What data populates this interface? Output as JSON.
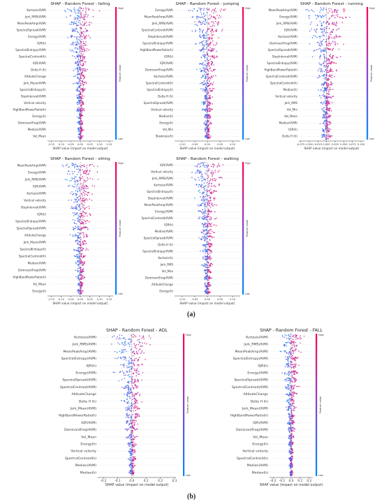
{
  "colors": {
    "high": "#ff0052",
    "low": "#008bfb"
  },
  "section_labels": {
    "a": "(a)",
    "b": "(b)"
  },
  "common": {
    "xlabel": "SHAP value (impact on model output)",
    "colorbar_title": "Feature value",
    "colorbar_high": "High",
    "colorbar_low": "Low"
  },
  "chart_data": [
    {
      "type": "scatter",
      "title": "SHAP - Random Forest - falling",
      "xlabel": "SHAP value (impact on model output)",
      "xlim": [
        -0.17,
        0.17
      ],
      "xticks": [
        -0.15,
        -0.1,
        -0.05,
        0.0,
        0.05,
        0.1,
        0.15
      ],
      "xtick_labels": [
        "-0.15",
        "-0.10",
        "-0.05",
        "0.00",
        "0.05",
        "0.10",
        "0.15"
      ],
      "features": [
        "Kurtosis(AVM)",
        "Jerk_RMS(AVM)",
        "MeanPeakAmp(AVM)",
        "SpectralSpread(AVM)",
        "Energy(AVM)",
        "IQR(h)",
        "SpectralEntropy(AVM)",
        "SpectralCentroid(h)",
        "IQR(AVM)",
        "Delta H (h)",
        "AltitudeChange",
        "Jerk_Mean(AVM)",
        "SpectralEntropy(h)",
        "StepInterval(AVM)",
        "Vertical velocity",
        "HighBandPowerRatio(h)",
        "Energy(h)",
        "DominantFreq(AVM)",
        "Median(AVM)",
        "Vel_Mean"
      ],
      "spread": [
        0.13,
        0.11,
        0.1,
        0.09,
        0.08,
        0.07,
        0.07,
        0.06,
        0.05,
        0.05,
        0.05,
        0.04,
        0.04,
        0.03,
        0.03,
        0.03,
        0.02,
        0.02,
        0.02,
        0.02
      ]
    },
    {
      "type": "scatter",
      "title": "SHAP - Random Forest - jumping",
      "xlabel": "SHAP value (impact on model output)",
      "xlim": [
        -0.13,
        0.13
      ],
      "xticks": [
        -0.1,
        -0.05,
        0.0,
        0.05,
        0.1
      ],
      "xtick_labels": [
        "-0.10",
        "-0.05",
        "0.00",
        "0.05",
        "0.10"
      ],
      "features": [
        "Energy(AVM)",
        "MeanPeakAmp(AVM)",
        "Jerk_RMS(AVM)",
        "SpectralCentroid(AVM)",
        "StepInterval(AVM)",
        "SpectralEntropy(AVM)",
        "HighBandPowerRatio(h)",
        "IQR(h)",
        "IQR(AVM)",
        "DominantFreq(AVM)",
        "Kurtosis(AVM)",
        "SpectralCentroid(h)",
        "SpectralEntropy(h)",
        "Delta H (h)",
        "SpectralSpread(AVM)",
        "Vertical velocity",
        "Median(h)",
        "Energy(h)",
        "Vel_Min",
        "Skewness(h)"
      ],
      "spread": [
        0.11,
        0.1,
        0.1,
        0.08,
        0.07,
        0.07,
        0.06,
        0.05,
        0.05,
        0.05,
        0.04,
        0.04,
        0.04,
        0.03,
        0.03,
        0.03,
        0.02,
        0.02,
        0.02,
        0.02
      ]
    },
    {
      "type": "scatter",
      "title": "SHAP - Random Forest - running",
      "xlabel": "SHAP value (impact on model output)",
      "xlim": [
        -0.08,
        0.11
      ],
      "xticks": [
        -0.075,
        -0.05,
        -0.025,
        0.0,
        0.025,
        0.05,
        0.075,
        0.1
      ],
      "xtick_labels": [
        "-0.075",
        "-0.050",
        "-0.025",
        "0.000",
        "0.025",
        "0.050",
        "0.075",
        "0.100"
      ],
      "features": [
        "MeanPeakAmp(AVM)",
        "Energy(AVM)",
        "Jerk_RMS(AVM)",
        "IQR(AVM)",
        "Kurtosis(AVM)",
        "DominantFreq(AVM)",
        "SpectralSpread(AVM)",
        "StepInterval(AVM)",
        "SpectralEntropy(AVM)",
        "HighBandPowerRatio(h)",
        "SpectralCentroid(AVM)",
        "SpectralCentroid(h)",
        "Median(h)",
        "Vertical velocity",
        "Jerk_RMS",
        "Vel_Min",
        "Vel_Mean",
        "Median(AVM)",
        "IQR(h)",
        "Delta H (h)"
      ],
      "spread": [
        0.1,
        0.09,
        0.08,
        0.07,
        0.06,
        0.06,
        0.05,
        0.05,
        0.04,
        0.04,
        0.04,
        0.03,
        0.03,
        0.03,
        0.02,
        0.02,
        0.02,
        0.02,
        0.02,
        0.02
      ]
    },
    {
      "type": "scatter",
      "title": "SHAP - Random Forest - sitting",
      "xlabel": "SHAP value (impact on model output)",
      "xlim": [
        -0.17,
        0.17
      ],
      "xticks": [
        -0.15,
        -0.1,
        -0.05,
        0.0,
        0.05,
        0.1,
        0.15
      ],
      "xtick_labels": [
        "-0.15",
        "-0.10",
        "-0.05",
        "0.00",
        "0.05",
        "0.10",
        "0.15"
      ],
      "features": [
        "MeanPeakAmp(AVM)",
        "Energy(AVM)",
        "Jerk_RMS(AVM)",
        "IQR(AVM)",
        "Kurtosis(AVM)",
        "Vertical velocity",
        "StepInterval(AVM)",
        "IQR(h)",
        "SpectralEntropy(AVM)",
        "SpectralSpread(AVM)",
        "AltitudeChange",
        "Jerk_Mean(AVM)",
        "SpectralEntropy(h)",
        "SpectralCentroid(h)",
        "Median(AVM)",
        "DominantFreq(AVM)",
        "HighBandPowerRatio(h)",
        "Vel_Mean",
        "Energy(h)"
      ],
      "spread": [
        0.13,
        0.12,
        0.11,
        0.1,
        0.09,
        0.08,
        0.08,
        0.07,
        0.07,
        0.06,
        0.06,
        0.05,
        0.05,
        0.04,
        0.04,
        0.03,
        0.03,
        0.02,
        0.02
      ]
    },
    {
      "type": "scatter",
      "title": "SHAP - Random Forest - walking",
      "xlabel": "SHAP value (impact on model output)",
      "xlim": [
        -0.13,
        0.13
      ],
      "xticks": [
        -0.1,
        -0.05,
        0.0,
        0.05,
        0.1
      ],
      "xtick_labels": [
        "-0.10",
        "-0.05",
        "0.00",
        "0.05",
        "0.10"
      ],
      "features": [
        "IQR(AVM)",
        "Vertical velocity",
        "Jerk_RMS(AVM)",
        "Kurtosis(AVM)",
        "SpectralEntropy(h)",
        "StepInterval(AVM)",
        "MeanPeakAmp(AVM)",
        "Energy(AVM)",
        "SpectralCentroid(AVM)",
        "IQR(h)",
        "Median(AVM)",
        "SpectralSpread(AVM)",
        "Delta H (h)",
        "SpectralEntropy(AVM)",
        "Kurtosis(h)",
        "Jerk_RMS",
        "Vel_Max",
        "DominantFreq(AVM)",
        "AltitudeChange",
        "Energy(h)"
      ],
      "spread": [
        0.1,
        0.1,
        0.09,
        0.07,
        0.06,
        0.06,
        0.05,
        0.05,
        0.05,
        0.04,
        0.04,
        0.04,
        0.03,
        0.03,
        0.03,
        0.03,
        0.02,
        0.02,
        0.02,
        0.02
      ]
    },
    {
      "type": "scatter",
      "title": "SHAP - Random Forest - ADL",
      "xlabel": "SHAP value (impact on model output)",
      "xlim": [
        -0.24,
        0.31
      ],
      "xticks": [
        -0.2,
        -0.1,
        0.0,
        0.1,
        0.2,
        0.3
      ],
      "xtick_labels": [
        "-0.2",
        "-0.1",
        "0.0",
        "0.1",
        "0.2",
        "0.3"
      ],
      "features": [
        "Kurtosis(AVM)",
        "Jerk_RMS(AVM)",
        "MeanPeakAmp(AVM)",
        "SpectralEntropy(AVM)",
        "IQR(h)",
        "Energy(AVM)",
        "SpectralSpread(AVM)",
        "SpectralCentroid(AVM)",
        "AltitudeChange",
        "Delta H (h)",
        "Jerk_Mean(AVM)",
        "HighBandPowerRatio(h)",
        "IQR(AVM)",
        "DominantFreq(AVM)",
        "Vel_Mean",
        "Energy(h)",
        "Vertical velocity",
        "SpectralCentroid(h)",
        "Median(AVM)",
        "Median(h)"
      ],
      "spread": [
        0.22,
        0.18,
        0.16,
        0.14,
        0.12,
        0.15,
        0.11,
        0.1,
        0.09,
        0.09,
        0.08,
        0.08,
        0.07,
        0.06,
        0.05,
        0.05,
        0.04,
        0.04,
        0.03,
        0.03
      ]
    },
    {
      "type": "scatter",
      "title": "SHAP - Random Forest - FALL",
      "xlabel": "SHAP value (impact on model output)",
      "xlim": [
        -0.24,
        0.24
      ],
      "xticks": [
        -0.2,
        -0.1,
        0.0,
        0.1,
        0.2
      ],
      "xtick_labels": [
        "-0.2",
        "-0.1",
        "0.0",
        "0.1",
        "0.2"
      ],
      "features": [
        "Kurtosis(AVM)",
        "Jerk_RMS(AVM)",
        "MeanPeakAmp(AVM)",
        "SpectralEntropy(AVM)",
        "IQR(h)",
        "Energy(AVM)",
        "SpectralSpread(AVM)",
        "SpectralCentroid(AVM)",
        "AltitudeChange",
        "Delta H (h)",
        "Jerk_Mean(AVM)",
        "HighBandPowerRatio(h)",
        "IQR(AVM)",
        "DominantFreq(AVM)",
        "Vel_Mean",
        "Energy(h)",
        "Vertical velocity",
        "SpectralCentroid(h)",
        "Median(AVM)",
        "Median(h)"
      ],
      "spread": [
        0.2,
        0.16,
        0.15,
        0.13,
        0.11,
        0.15,
        0.1,
        0.1,
        0.09,
        0.08,
        0.08,
        0.07,
        0.06,
        0.06,
        0.05,
        0.04,
        0.04,
        0.03,
        0.03,
        0.03
      ]
    }
  ]
}
